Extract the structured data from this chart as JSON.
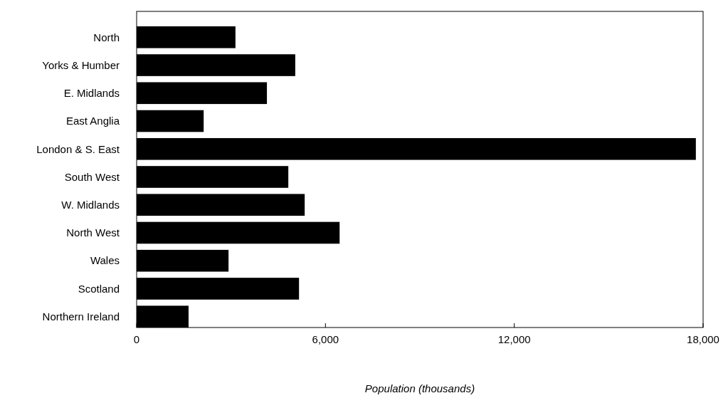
{
  "chart_data": {
    "type": "bar",
    "orientation": "horizontal",
    "xlabel": "Population (thousands)",
    "categories": [
      "North",
      "Yorks & Humber",
      "E. Midlands",
      "East Anglia",
      "London & S. East",
      "South West",
      "W. Midlands",
      "North West",
      "Wales",
      "Scotland",
      "Northern Ireland"
    ],
    "values": [
      3140,
      5040,
      4140,
      2130,
      17770,
      4820,
      5340,
      6450,
      2920,
      5160,
      1650
    ],
    "color": "#000000",
    "xlim": [
      0,
      18000
    ],
    "xticks": [
      0,
      {
        "value": 6000,
        "label": "6,000"
      },
      {
        "value": 12000,
        "label": "12,000"
      },
      {
        "value": 18000,
        "label": "18,000"
      }
    ],
    "grid": false
  }
}
